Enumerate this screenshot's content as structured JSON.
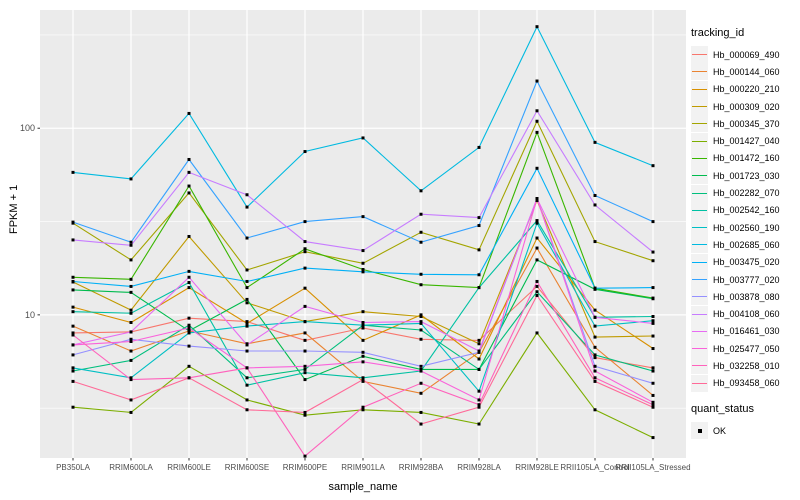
{
  "figure": {
    "y_axis": {
      "title": "FPKM + 1"
    },
    "x_axis": {
      "title": "sample_name"
    },
    "legend": {
      "color_title": "tracking_id",
      "shape_title": "quant_status",
      "shape_items": [
        {
          "label": "OK"
        }
      ]
    },
    "style": {
      "panel_bg": "#EBEBEB",
      "grid_color": "#FFFFFF",
      "tick_text_color": "#4D4D4D",
      "marker_color": "#000000",
      "key_bg": "#F2F2F2"
    }
  },
  "chart_data": {
    "type": "line",
    "title": "",
    "xlabel": "sample_name",
    "ylabel": "FPKM + 1",
    "y_scale": "log10",
    "y_ticks": [
      100,
      10
    ],
    "y_tick_labels": [
      "100",
      "10"
    ],
    "y_minor_ticks": [
      316.2,
      31.62,
      3.162
    ],
    "ylim": [
      1.71,
      430
    ],
    "grid": true,
    "legend_position": "right",
    "marker": "black-square",
    "x_categories": [
      "PB350LA",
      "RRIM600LA",
      "RRIM600LE",
      "RRIM600SE",
      "RRIM600PE",
      "RRIM901LA",
      "RRIM928BA",
      "RRIM928LA",
      "RRIM928LE",
      "RRII105LA_Control",
      "RRII105LA_Stressed"
    ],
    "series": [
      {
        "name": "Hb_000069_490",
        "color": "#F8766D",
        "values": [
          8.0,
          8.1,
          9.6,
          9.2,
          7.3,
          8.5,
          7.4,
          7.3,
          14.2,
          5.9,
          5.2
        ]
      },
      {
        "name": "Hb_000144_060",
        "color": "#EA8331",
        "values": [
          8.7,
          6.4,
          8.2,
          7.0,
          8.0,
          4.4,
          3.8,
          6.3,
          22.8,
          6.7,
          3.7
        ]
      },
      {
        "name": "Hb_000220_210",
        "color": "#D89000",
        "values": [
          11.0,
          9.1,
          14.0,
          9.0,
          13.9,
          7.3,
          10.0,
          5.8,
          25.8,
          10.6,
          6.6
        ]
      },
      {
        "name": "Hb_000309_020",
        "color": "#C09B00",
        "values": [
          15.0,
          10.6,
          26.3,
          11.6,
          9.2,
          10.4,
          9.8,
          7.0,
          41.0,
          7.6,
          7.7
        ]
      },
      {
        "name": "Hb_000345_370",
        "color": "#A3A500",
        "values": [
          31.0,
          19.7,
          45.0,
          17.4,
          21.8,
          18.9,
          27.7,
          22.3,
          109.0,
          24.7,
          19.5
        ]
      },
      {
        "name": "Hb_001427_040",
        "color": "#7CAE00",
        "values": [
          3.2,
          3.0,
          5.3,
          3.5,
          2.9,
          3.1,
          3.0,
          2.6,
          8.0,
          3.1,
          2.2
        ]
      },
      {
        "name": "Hb_001472_160",
        "color": "#39B600",
        "values": [
          15.9,
          15.5,
          49.0,
          14.0,
          22.6,
          17.5,
          14.5,
          14.0,
          95.0,
          13.9,
          12.3
        ]
      },
      {
        "name": "Hb_001723_030",
        "color": "#00BB4E",
        "values": [
          13.6,
          13.2,
          8.2,
          12.1,
          4.5,
          6.0,
          5.1,
          5.1,
          19.7,
          13.7,
          12.2
        ]
      },
      {
        "name": "Hb_002282_070",
        "color": "#00BF7D",
        "values": [
          5.0,
          5.7,
          8.8,
          4.6,
          5.1,
          8.8,
          8.3,
          5.1,
          13.3,
          6.1,
          5.0
        ]
      },
      {
        "name": "Hb_002542_160",
        "color": "#00C1A3",
        "values": [
          10.4,
          10.2,
          14.9,
          4.2,
          4.9,
          4.6,
          5.0,
          14.0,
          32.0,
          9.7,
          9.8
        ]
      },
      {
        "name": "Hb_002560_190",
        "color": "#00BFC4",
        "values": [
          5.2,
          4.6,
          8.0,
          8.7,
          9.2,
          8.8,
          9.0,
          3.9,
          31.0,
          8.7,
          9.3
        ]
      },
      {
        "name": "Hb_002685_060",
        "color": "#00BAE0",
        "values": [
          58.0,
          53.5,
          120.0,
          37.8,
          75.0,
          88.7,
          46.2,
          78.9,
          350.0,
          84.0,
          63.0
        ]
      },
      {
        "name": "Hb_003475_020",
        "color": "#00B0F6",
        "values": [
          15.1,
          14.2,
          17.1,
          15.1,
          17.8,
          17.0,
          16.5,
          16.4,
          61.0,
          13.9,
          14.0
        ]
      },
      {
        "name": "Hb_003777_020",
        "color": "#35A2FF",
        "values": [
          31.4,
          24.5,
          68.0,
          25.8,
          31.6,
          33.6,
          24.5,
          30.1,
          179.0,
          43.6,
          31.6
        ]
      },
      {
        "name": "Hb_003878_080",
        "color": "#9590FF",
        "values": [
          6.1,
          7.4,
          6.8,
          6.4,
          6.4,
          6.3,
          5.3,
          6.3,
          42.0,
          5.3,
          4.3
        ]
      },
      {
        "name": "Hb_004108_060",
        "color": "#C77CFF",
        "values": [
          25.2,
          23.6,
          58.0,
          44.0,
          24.7,
          22.1,
          34.6,
          33.2,
          124.0,
          38.8,
          21.7
        ]
      },
      {
        "name": "Hb_016461_030",
        "color": "#E76BF3",
        "values": [
          6.9,
          8.1,
          15.9,
          6.9,
          11.1,
          9.1,
          9.2,
          6.4,
          42.0,
          9.7,
          9.0
        ]
      },
      {
        "name": "Hb_025477_050",
        "color": "#FA62DB",
        "values": [
          6.9,
          7.2,
          8.5,
          5.2,
          5.3,
          5.6,
          5.0,
          3.5,
          42.0,
          5.0,
          3.4
        ]
      },
      {
        "name": "Hb_032258_010",
        "color": "#FF62BC",
        "values": [
          7.8,
          4.5,
          4.6,
          5.2,
          1.75,
          3.2,
          4.3,
          3.3,
          15.1,
          4.6,
          3.3
        ]
      },
      {
        "name": "Hb_093458_060",
        "color": "#FF6A98",
        "values": [
          4.4,
          3.5,
          4.6,
          3.1,
          3.0,
          4.5,
          2.6,
          3.2,
          12.7,
          4.4,
          3.2
        ]
      }
    ]
  }
}
